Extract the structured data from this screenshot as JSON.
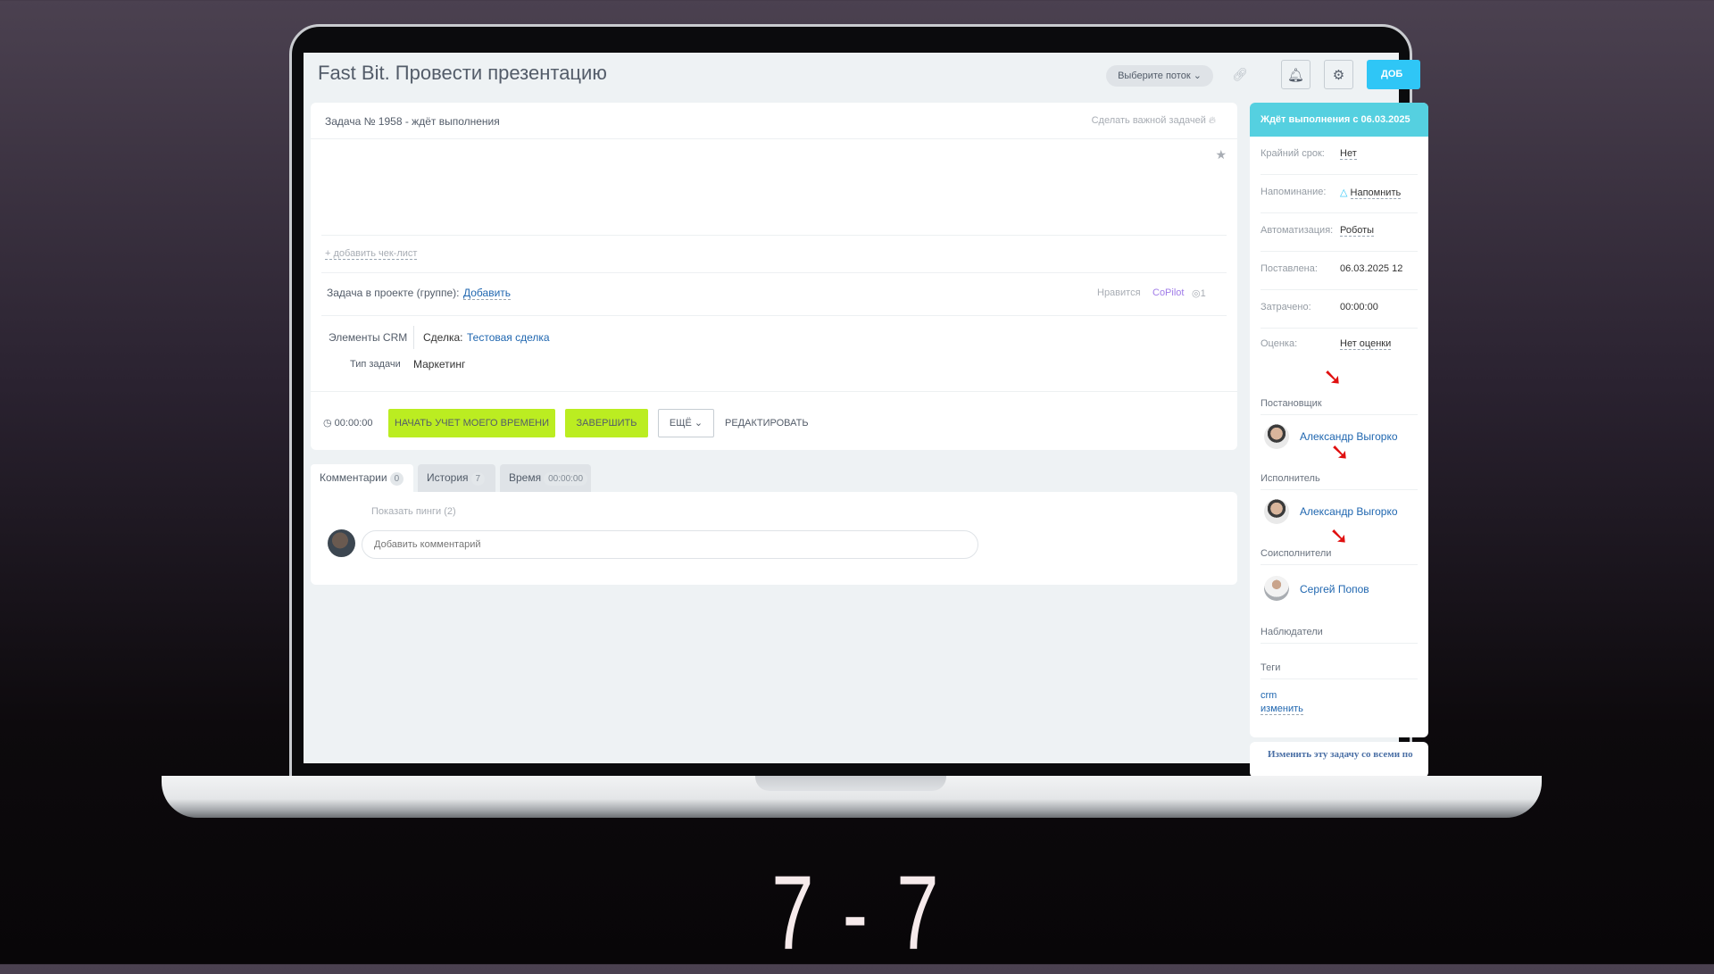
{
  "header": {
    "title": "Fast Bit. Провести презентацию",
    "flow_select": "Выберите поток",
    "blue_button": "ДОБ",
    "icons": [
      "link-icon",
      "bell-icon",
      "gear-icon"
    ]
  },
  "task": {
    "status_line": "Задача № 1958 - ждёт выполнения",
    "make_important": "Сделать важной задачей",
    "add_checklist": "+ добавить чек-лист",
    "project_label": "Задача в проекте (группе):",
    "project_add": "Добавить",
    "likes": "Нравится",
    "copilot": "CoPilot",
    "views": "1",
    "crm_label": "Элементы CRM",
    "deal_label": "Сделка:",
    "deal_value": "Тестовая сделка",
    "type_label": "Тип задачи",
    "type_value": "Маркетинг"
  },
  "actions": {
    "timer": "00:00:00",
    "start_time": "НАЧАТЬ УЧЕТ МОЕГО ВРЕМЕНИ",
    "complete": "ЗАВЕРШИТЬ",
    "more": "ЕЩЁ",
    "edit": "РЕДАКТИРОВАТЬ"
  },
  "tabs": [
    {
      "label": "Комментарии",
      "count": "0"
    },
    {
      "label": "История",
      "count": "7"
    },
    {
      "label": "Время",
      "count": "00:00:00"
    }
  ],
  "comments": {
    "show_pings": "Показать пинги (2)",
    "placeholder": "Добавить комментарий"
  },
  "sidebar": {
    "status": "Ждёт выполнения с 06.03.2025",
    "fields": [
      {
        "label": "Крайний срок:",
        "value": "Нет"
      },
      {
        "label": "Напоминание:",
        "value": "Напомнить"
      },
      {
        "label": "Автоматизация:",
        "value": "Роботы"
      },
      {
        "label": "Поставлена:",
        "value": "06.03.2025 12"
      },
      {
        "label": "Затрачено:",
        "value": "00:00:00"
      },
      {
        "label": "Оценка:",
        "value": "Нет оценки"
      }
    ],
    "creator_label": "Постановщик",
    "creator": "Александр Выгорко",
    "responsible_label": "Исполнитель",
    "responsible": "Александр Выгорко",
    "accomplices_label": "Соисполнители",
    "accomplice": "Сергей Попов",
    "observers_label": "Наблюдатели",
    "tags_label": "Теги",
    "tag": "crm",
    "tags_change": "изменить",
    "bottom_link": "Изменить эту задачу со всеми по"
  },
  "counter": "7 - 7",
  "colors": {
    "accent_green": "#bbed21",
    "status_teal": "#55d0e0",
    "link_blue": "#2067b0",
    "arrow_red": "#e01010"
  }
}
